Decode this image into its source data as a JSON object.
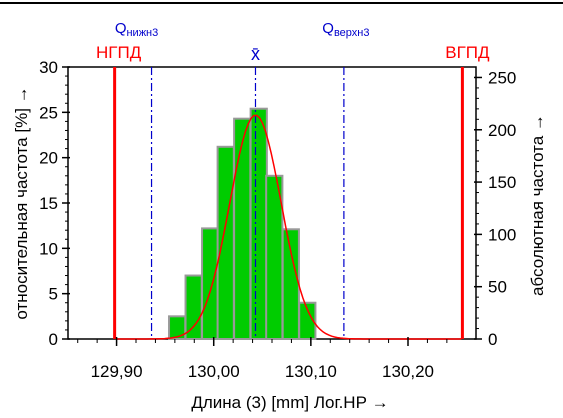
{
  "chart_data": {
    "type": "bar",
    "x_label": "Длина (3) [mm]  Лог.НР →",
    "y_left_label": "относительная частота  [%] →",
    "y_right_label": "абсолютная частота →",
    "x_ticks": [
      {
        "value": 129.9,
        "label": "129,90"
      },
      {
        "value": 130.0,
        "label": "130,00"
      },
      {
        "value": 130.1,
        "label": "130,10"
      },
      {
        "value": 130.2,
        "label": "130,20"
      }
    ],
    "xlim": [
      129.85,
      130.27
    ],
    "y_left": {
      "ylim": [
        0,
        30
      ],
      "ticks": [
        0,
        5,
        10,
        15,
        20,
        25,
        30
      ]
    },
    "y_right": {
      "ylim": [
        0,
        260
      ],
      "ticks": [
        0,
        50,
        100,
        150,
        200,
        250
      ]
    },
    "histogram": {
      "bin_width": 0.0167,
      "bins": [
        {
          "x0": 129.954,
          "value": 2.5
        },
        {
          "x0": 129.971,
          "value": 7.0
        },
        {
          "x0": 129.988,
          "value": 12.2
        },
        {
          "x0": 130.004,
          "value": 21.2
        },
        {
          "x0": 130.021,
          "value": 24.3
        },
        {
          "x0": 130.038,
          "value": 25.4
        },
        {
          "x0": 130.054,
          "value": 18.0
        },
        {
          "x0": 130.071,
          "value": 12.1
        },
        {
          "x0": 130.088,
          "value": 4.0
        }
      ]
    },
    "normal_curve": {
      "mean": 130.043,
      "sd": 0.0265,
      "peak": 24.7
    },
    "reference_lines": [
      {
        "name": "НГПД",
        "value": 129.898,
        "color": "#ff0000"
      },
      {
        "name": "Q_нижн3",
        "value": 129.936,
        "color": "#0000cc",
        "main": "Q",
        "sub": "нижн3"
      },
      {
        "name": "x̄",
        "value": 130.043,
        "color": "#0000cc"
      },
      {
        "name": "Q_верхн3",
        "value": 130.134,
        "color": "#0000cc",
        "main": "Q",
        "sub": "верхн3"
      },
      {
        "name": "ВГПД",
        "value": 130.256,
        "color": "#ff0000"
      }
    ],
    "colors": {
      "bar_fill": "#00cc00",
      "bar_stroke": "#999999",
      "curve": "#ff0000",
      "blue": "#0000cc",
      "red": "#ff0000"
    },
    "grid": false
  }
}
